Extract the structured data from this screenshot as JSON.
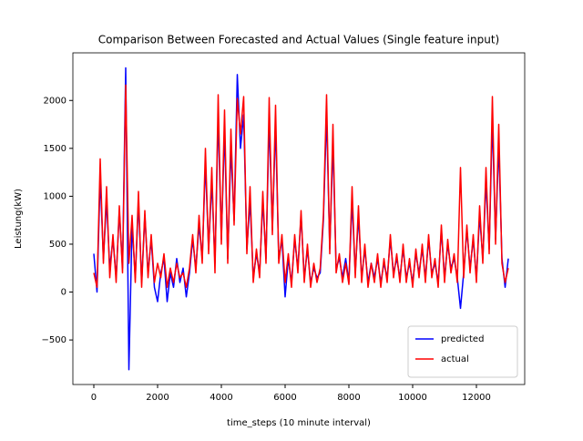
{
  "chart_data": {
    "type": "line",
    "title": "Comparison Between Forecasted and Actual Values (Single feature input)",
    "x_label": "time_steps (10 minute interval)",
    "y_label": "Leistung(kW)",
    "x": [
      0,
      100,
      200,
      300,
      400,
      500,
      600,
      700,
      800,
      900,
      1000,
      1100,
      1200,
      1300,
      1400,
      1500,
      1600,
      1700,
      1800,
      1900,
      2000,
      2100,
      2200,
      2300,
      2400,
      2500,
      2600,
      2700,
      2800,
      2900,
      3000,
      3100,
      3200,
      3300,
      3400,
      3500,
      3600,
      3700,
      3800,
      3900,
      4000,
      4100,
      4200,
      4300,
      4400,
      4500,
      4600,
      4700,
      4800,
      4900,
      5000,
      5100,
      5200,
      5300,
      5400,
      5500,
      5600,
      5700,
      5800,
      5900,
      6000,
      6100,
      6200,
      6300,
      6400,
      6500,
      6600,
      6700,
      6800,
      6900,
      7000,
      7100,
      7200,
      7300,
      7400,
      7500,
      7600,
      7700,
      7800,
      7900,
      8000,
      8100,
      8200,
      8300,
      8400,
      8500,
      8600,
      8700,
      8800,
      8900,
      9000,
      9100,
      9200,
      9300,
      9400,
      9500,
      9600,
      9700,
      9800,
      9900,
      10000,
      10100,
      10200,
      10300,
      10400,
      10500,
      10600,
      10700,
      10800,
      10900,
      11000,
      11100,
      11200,
      11300,
      11400,
      11500,
      11600,
      11700,
      11800,
      11900,
      12000,
      12100,
      12200,
      12300,
      12400,
      12500,
      12600,
      12700,
      12800,
      12900,
      13000
    ],
    "series": [
      {
        "name": "predicted",
        "color": "#0000ff",
        "values": [
          400,
          0,
          1200,
          350,
          950,
          250,
          550,
          150,
          850,
          250,
          2340,
          -810,
          700,
          150,
          950,
          100,
          800,
          200,
          550,
          50,
          -100,
          200,
          350,
          -100,
          200,
          50,
          350,
          100,
          250,
          -50,
          200,
          550,
          250,
          700,
          350,
          1350,
          450,
          1150,
          300,
          1850,
          550,
          1700,
          350,
          1500,
          750,
          2270,
          1500,
          1850,
          450,
          950,
          150,
          400,
          200,
          950,
          350,
          1800,
          650,
          1750,
          350,
          550,
          -50,
          350,
          100,
          550,
          250,
          800,
          150,
          450,
          100,
          250,
          150,
          200,
          750,
          1850,
          450,
          1550,
          250,
          350,
          150,
          350,
          100,
          950,
          200,
          800,
          150,
          450,
          100,
          300,
          150,
          350,
          100,
          300,
          150,
          550,
          200,
          350,
          150,
          450,
          150,
          300,
          100,
          400,
          200,
          450,
          150,
          550,
          200,
          300,
          100,
          650,
          150,
          500,
          250,
          350,
          150,
          -170,
          200,
          650,
          250,
          550,
          150,
          800,
          350,
          1150,
          450,
          1800,
          550,
          1550,
          350,
          50,
          350
        ]
      },
      {
        "name": "actual",
        "color": "#ff0000",
        "values": [
          200,
          50,
          1390,
          300,
          1100,
          150,
          600,
          100,
          900,
          200,
          2160,
          300,
          800,
          100,
          1050,
          50,
          850,
          150,
          600,
          100,
          300,
          150,
          400,
          50,
          250,
          100,
          300,
          150,
          200,
          50,
          250,
          600,
          200,
          800,
          300,
          1500,
          400,
          1300,
          200,
          2060,
          500,
          1900,
          300,
          1700,
          700,
          2020,
          1650,
          2040,
          400,
          1100,
          100,
          450,
          150,
          1050,
          300,
          2030,
          600,
          1950,
          300,
          600,
          100,
          400,
          50,
          600,
          200,
          850,
          100,
          500,
          50,
          300,
          100,
          250,
          800,
          2060,
          400,
          1750,
          200,
          400,
          100,
          300,
          80,
          1100,
          150,
          900,
          100,
          500,
          50,
          300,
          100,
          400,
          50,
          350,
          100,
          600,
          150,
          400,
          100,
          500,
          100,
          350,
          50,
          450,
          150,
          500,
          100,
          600,
          150,
          350,
          50,
          700,
          100,
          550,
          200,
          400,
          100,
          1300,
          150,
          700,
          200,
          600,
          100,
          900,
          300,
          1300,
          400,
          2040,
          500,
          1750,
          300,
          100,
          250
        ]
      }
    ],
    "xlim": [
      -657,
      13514
    ],
    "ylim": [
      -965,
      2497
    ],
    "xticks": [
      0,
      2000,
      4000,
      6000,
      8000,
      10000,
      12000
    ],
    "yticks": [
      {
        "value": -500,
        "label": "−500"
      },
      0,
      500,
      1000,
      1500,
      2000
    ],
    "legend": "lower right"
  }
}
